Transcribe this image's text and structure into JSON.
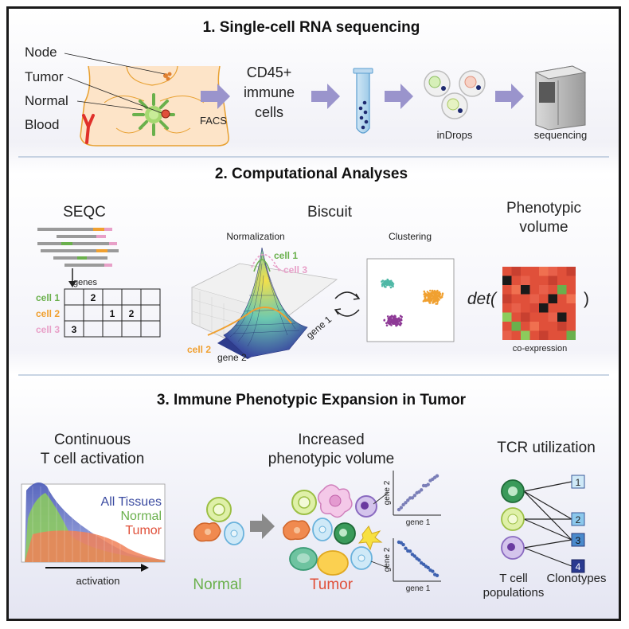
{
  "panel1": {
    "title": "1. Single-cell RNA sequencing",
    "body_labels": [
      "Node",
      "Tumor",
      "Normal",
      "Blood"
    ],
    "facs": "FACS",
    "cells_label": [
      "CD45+",
      "immune",
      "cells"
    ],
    "indrops": "inDrops",
    "sequencing": "sequencing"
  },
  "panel2": {
    "title": "2. Computational Analyses",
    "seqc": {
      "title": "SEQC",
      "genes": "genes",
      "rows": [
        "cell 1",
        "cell 2",
        "cell 3"
      ],
      "counts": [
        [
          "",
          "2",
          "",
          "",
          ""
        ],
        [
          "",
          "",
          "1",
          "2",
          ""
        ],
        [
          "3",
          "",
          "",
          "",
          ""
        ]
      ]
    },
    "biscuit": {
      "title": "Biscuit",
      "normalization": "Normalization",
      "clustering": "Clustering",
      "cell1": "cell 1",
      "cell2": "cell 2",
      "cell3": "cell 3",
      "gene1": "gene 1",
      "gene2": "gene 2"
    },
    "phenotypic": {
      "title": [
        "Phenotypic",
        "volume"
      ],
      "det_open": "det(",
      "det_close": ")",
      "caption": "co-expression"
    }
  },
  "panel3": {
    "title": "3. Immune Phenotypic Expansion in Tumor",
    "activation": {
      "title": [
        "Continuous",
        "T cell activation"
      ],
      "legend": [
        "All Tissues",
        "Normal",
        "Tumor"
      ],
      "axis": "activation"
    },
    "volume": {
      "title": [
        "Increased",
        "phenotypic volume"
      ],
      "normal": "Normal",
      "tumor": "Tumor",
      "gene1": "gene 1",
      "gene2": "gene 2"
    },
    "tcr": {
      "title": "TCR utilization",
      "clonotype_numbers": [
        "1",
        "2",
        "3",
        "4"
      ],
      "populations": [
        "T cell",
        "populations"
      ],
      "clonotypes": "Clonotypes"
    }
  },
  "colors": {
    "arrow": "#9a94cc",
    "green": "#6ab04c",
    "orange": "#f0a030",
    "pink": "#e8a0c8",
    "red": "#e0503a",
    "blue": "#3a4aa0"
  }
}
